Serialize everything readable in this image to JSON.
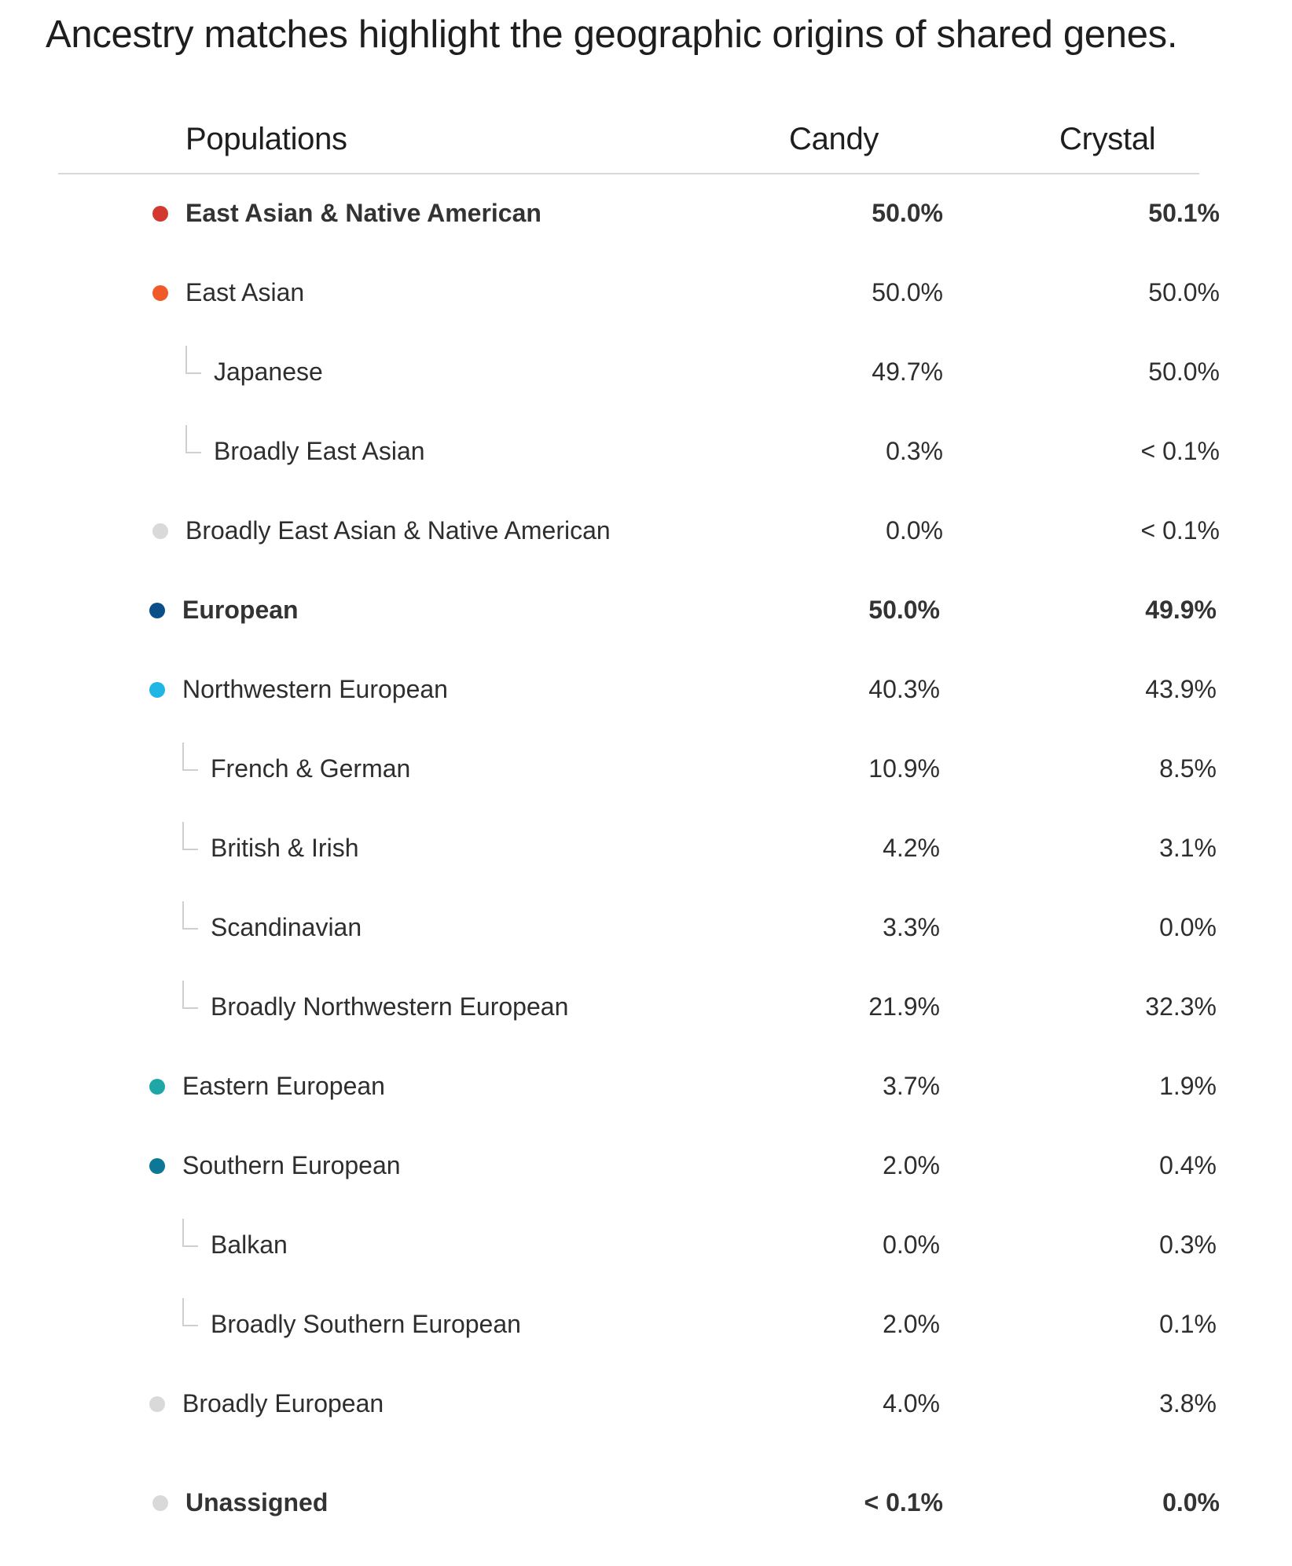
{
  "headline": "Ancestry matches highlight the geographic origins of shared genes.",
  "table": {
    "headers": {
      "populations": "Populations",
      "col1": "Candy",
      "col2": "Crystal"
    },
    "rows": [
      {
        "name": "East Asian & Native American",
        "candy": "50.0%",
        "crystal": "50.1%",
        "bold": true,
        "level": 0,
        "dot_color": "#d33a2f"
      },
      {
        "name": "East Asian",
        "candy": "50.0%",
        "crystal": "50.0%",
        "bold": false,
        "level": 0,
        "dot_color": "#f05a2b"
      },
      {
        "name": "Japanese",
        "candy": "49.7%",
        "crystal": "50.0%",
        "bold": false,
        "level": 1
      },
      {
        "name": "Broadly East Asian",
        "candy": "0.3%",
        "crystal": "< 0.1%",
        "bold": false,
        "level": 1
      },
      {
        "name": "Broadly East Asian & Native American",
        "candy": "0.0%",
        "crystal": "< 0.1%",
        "bold": false,
        "level": 0,
        "dot_color": "#d9d9d9"
      },
      {
        "name": "European",
        "candy": "50.0%",
        "crystal": "49.9%",
        "bold": true,
        "level": 0,
        "dot_color": "#0b4f8a"
      },
      {
        "name": "Northwestern European",
        "candy": "40.3%",
        "crystal": "43.9%",
        "bold": false,
        "level": 0,
        "dot_color": "#1fb6e6"
      },
      {
        "name": "French & German",
        "candy": "10.9%",
        "crystal": "8.5%",
        "bold": false,
        "level": 1
      },
      {
        "name": "British & Irish",
        "candy": "4.2%",
        "crystal": "3.1%",
        "bold": false,
        "level": 1
      },
      {
        "name": "Scandinavian",
        "candy": "3.3%",
        "crystal": "0.0%",
        "bold": false,
        "level": 1
      },
      {
        "name": "Broadly Northwestern European",
        "candy": "21.9%",
        "crystal": "32.3%",
        "bold": false,
        "level": 1
      },
      {
        "name": "Eastern European",
        "candy": "3.7%",
        "crystal": "1.9%",
        "bold": false,
        "level": 0,
        "dot_color": "#1fa7a8"
      },
      {
        "name": "Southern European",
        "candy": "2.0%",
        "crystal": "0.4%",
        "bold": false,
        "level": 0,
        "dot_color": "#0d7796"
      },
      {
        "name": "Balkan",
        "candy": "0.0%",
        "crystal": "0.3%",
        "bold": false,
        "level": 1
      },
      {
        "name": "Broadly Southern European",
        "candy": "2.0%",
        "crystal": "0.1%",
        "bold": false,
        "level": 1
      },
      {
        "name": "Broadly European",
        "candy": "4.0%",
        "crystal": "3.8%",
        "bold": false,
        "level": 0,
        "dot_color": "#d9d9d9"
      },
      {
        "name": "Unassigned",
        "candy": "< 0.1%",
        "crystal": "0.0%",
        "bold": true,
        "level": 0,
        "dot_color": "#d9d9d9"
      }
    ]
  }
}
